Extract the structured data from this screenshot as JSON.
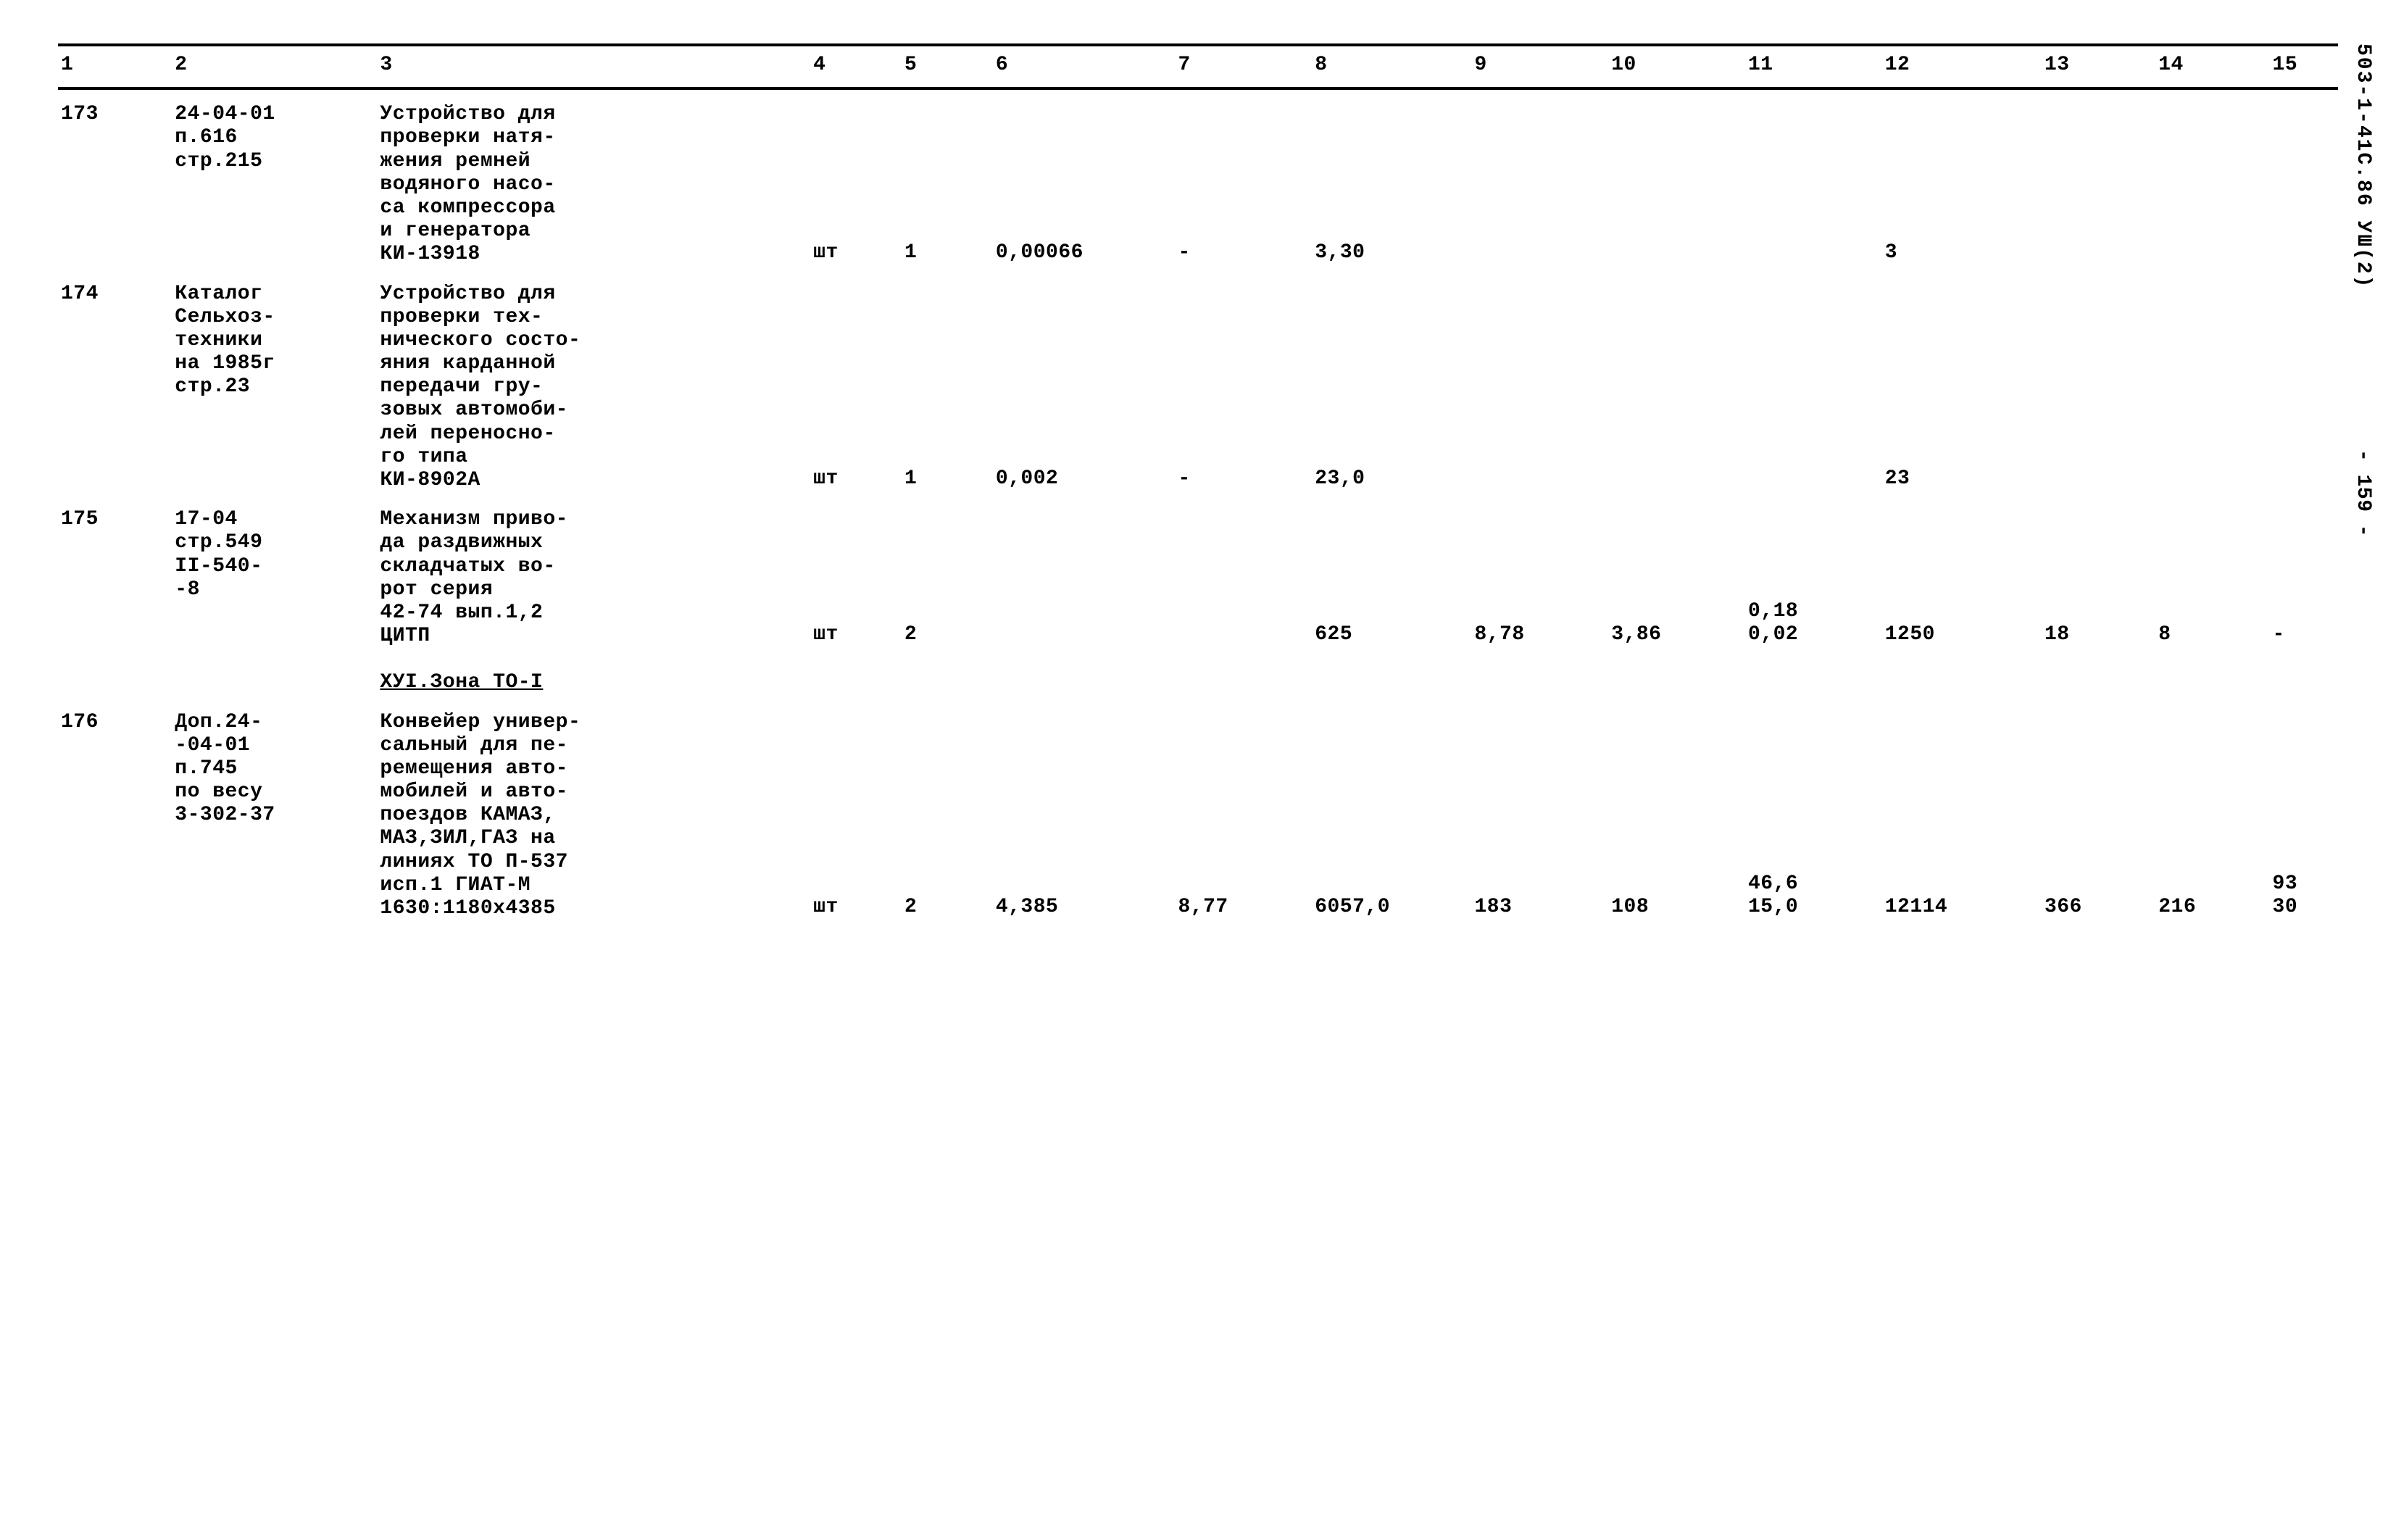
{
  "document": {
    "side_label": "503-1-41С.86 УШ(2)",
    "side_page": "- 159 -"
  },
  "table": {
    "type": "table",
    "background_color": "#ffffff",
    "text_color": "#000000",
    "font_family": "Courier",
    "font_weight": "bold",
    "font_size_pt": 20,
    "border_color": "#000000",
    "columns": [
      "1",
      "2",
      "3",
      "4",
      "5",
      "6",
      "7",
      "8",
      "9",
      "10",
      "11",
      "12",
      "13",
      "14",
      "15"
    ],
    "header_labels": {
      "c1": "1",
      "c2": "2",
      "c3": "3",
      "c4": "4",
      "c5": "5",
      "c6": "6",
      "c7": "7",
      "c8": "8",
      "c9": "9",
      "c10": "10",
      "c11": "11",
      "c12": "12",
      "c13": "13",
      "c14": "14",
      "c15": "15"
    },
    "rows": [
      {
        "c1": "173",
        "c2": "24-04-01\nп.616\nстр.215",
        "c3": "Устройство для\nпроверки натя-\nжения ремней\nводяного насо-\nса компрессора\nи генератора\nКИ-13918",
        "c4": "шт",
        "c5": "1",
        "c6": "0,00066",
        "c7": "-",
        "c8": "3,30",
        "c9": "",
        "c10": "",
        "c11": "",
        "c12": "3",
        "c13": "",
        "c14": "",
        "c15": ""
      },
      {
        "c1": "174",
        "c2": "Каталог\nСельхоз-\nтехники\nна 1985г\nстр.23",
        "c3": "Устройство для\nпроверки тех-\nнического состо-\nяния карданной\nпередачи гру-\nзовых автомоби-\nлей переносно-\nго типа\nКИ-8902А",
        "c4": "шт",
        "c5": "1",
        "c6": "0,002",
        "c7": "-",
        "c8": "23,0",
        "c9": "",
        "c10": "",
        "c11": "",
        "c12": "23",
        "c13": "",
        "c14": "",
        "c15": ""
      },
      {
        "c1": "175",
        "c2": "17-04\nстр.549\nII-540-\n-8",
        "c3": "Механизм приво-\nда раздвижных\nскладчатых во-\nрот серия\n42-74 вып.1,2\nЦИТП",
        "c4": "шт",
        "c5": "2",
        "c6": "",
        "c7": "",
        "c8": "625",
        "c9": "8,78",
        "c10": "3,86",
        "c11": "0,18\n0,02",
        "c12": "1250",
        "c13": "18",
        "c14": "8",
        "c15": "-"
      },
      {
        "section": true,
        "title": "ХУI.Зона ТО-I"
      },
      {
        "c1": "176",
        "c2": "Доп.24-\n-04-01\nп.745\nпо весу\n3-302-37",
        "c3": "Конвейер универ-\nсальный для пе-\nремещения авто-\nмобилей и авто-\nпоездов КАМАЗ,\nМАЗ,ЗИЛ,ГАЗ на\nлиниях ТО П-537\nисп.1 ГИАТ-М\n1630:1180х4385",
        "c4": "шт",
        "c5": "2",
        "c6": "4,385",
        "c7": "8,77",
        "c8": "6057,0",
        "c9": "183",
        "c10": "108",
        "c11": "46,6\n15,0",
        "c12": "12114",
        "c13": "366",
        "c14": "216",
        "c15": "93\n30"
      }
    ]
  }
}
